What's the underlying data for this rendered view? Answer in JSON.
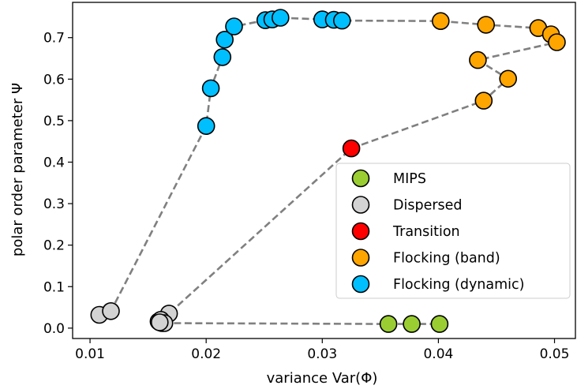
{
  "chart_data": {
    "type": "scatter",
    "xlabel": "variance Var(Φ)",
    "ylabel": "polar order parameter Ψ",
    "xlim": [
      0.0085,
      0.0518
    ],
    "ylim": [
      -0.025,
      0.785
    ],
    "xticks": [
      0.01,
      0.02,
      0.03,
      0.04,
      0.05
    ],
    "yticks": [
      0.0,
      0.1,
      0.2,
      0.3,
      0.4,
      0.5,
      0.6,
      0.7
    ],
    "xtick_labels": [
      "0.01",
      "0.02",
      "0.03",
      "0.04",
      "0.05"
    ],
    "ytick_labels": [
      "0.0",
      "0.1",
      "0.2",
      "0.3",
      "0.4",
      "0.5",
      "0.6",
      "0.7"
    ],
    "grid": false,
    "legend_position": "lower-right",
    "connecting_line": {
      "style": "dashed",
      "color": "#808080",
      "path": [
        [
          0.0108,
          0.032
        ],
        [
          0.0118,
          0.041
        ],
        [
          0.02,
          0.487
        ],
        [
          0.0204,
          0.578
        ],
        [
          0.0214,
          0.653
        ],
        [
          0.0216,
          0.695
        ],
        [
          0.0224,
          0.727
        ],
        [
          0.0251,
          0.742
        ],
        [
          0.0257,
          0.744
        ],
        [
          0.0264,
          0.748
        ],
        [
          0.03,
          0.744
        ],
        [
          0.031,
          0.743
        ],
        [
          0.0317,
          0.741
        ],
        [
          0.0402,
          0.74
        ],
        [
          0.0441,
          0.731
        ],
        [
          0.0486,
          0.723
        ],
        [
          0.0497,
          0.708
        ],
        [
          0.0502,
          0.689
        ],
        [
          0.0434,
          0.646
        ],
        [
          0.046,
          0.601
        ],
        [
          0.0439,
          0.548
        ],
        [
          0.0325,
          0.433
        ],
        [
          0.0168,
          0.035
        ],
        [
          0.0162,
          0.012
        ],
        [
          0.0357,
          0.01
        ],
        [
          0.0377,
          0.01
        ],
        [
          0.0401,
          0.01
        ]
      ]
    },
    "series": [
      {
        "name": "MIPS",
        "color": "#9acd32",
        "points": [
          [
            0.0357,
            0.01
          ],
          [
            0.0377,
            0.01
          ],
          [
            0.0401,
            0.01
          ]
        ]
      },
      {
        "name": "Dispersed",
        "color": "#d3d3d3",
        "points": [
          [
            0.0108,
            0.032
          ],
          [
            0.0118,
            0.041
          ],
          [
            0.0168,
            0.035
          ],
          [
            0.0162,
            0.012
          ],
          [
            0.0159,
            0.016
          ],
          [
            0.0161,
            0.02
          ],
          [
            0.0164,
            0.012
          ],
          [
            0.016,
            0.014
          ]
        ]
      },
      {
        "name": "Transition",
        "color": "#ff0000",
        "points": [
          [
            0.0325,
            0.433
          ]
        ]
      },
      {
        "name": "Flocking (band)",
        "color": "#ffa500",
        "points": [
          [
            0.0402,
            0.74
          ],
          [
            0.0441,
            0.731
          ],
          [
            0.0486,
            0.723
          ],
          [
            0.0497,
            0.708
          ],
          [
            0.0502,
            0.689
          ],
          [
            0.0434,
            0.646
          ],
          [
            0.046,
            0.601
          ],
          [
            0.0439,
            0.548
          ]
        ]
      },
      {
        "name": "Flocking (dynamic)",
        "color": "#00bfff",
        "points": [
          [
            0.02,
            0.487
          ],
          [
            0.0204,
            0.578
          ],
          [
            0.0214,
            0.653
          ],
          [
            0.0216,
            0.695
          ],
          [
            0.0224,
            0.727
          ],
          [
            0.0251,
            0.742
          ],
          [
            0.0257,
            0.744
          ],
          [
            0.0264,
            0.748
          ],
          [
            0.03,
            0.744
          ],
          [
            0.031,
            0.743
          ],
          [
            0.0317,
            0.741
          ]
        ]
      }
    ]
  }
}
